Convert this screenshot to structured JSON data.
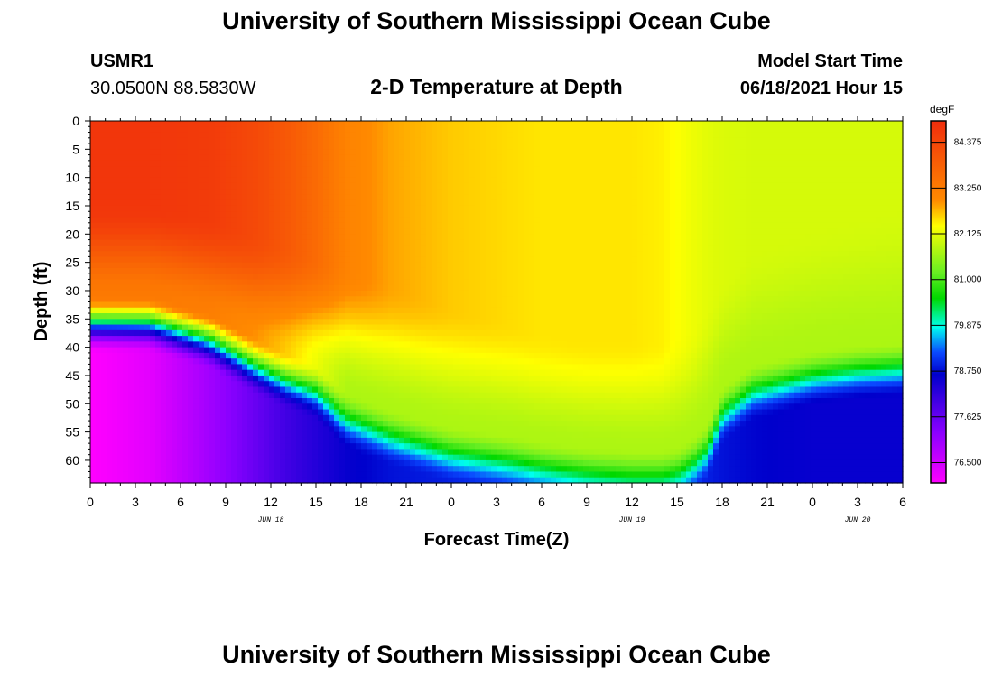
{
  "header": {
    "top_title": "University of Southern Mississippi Ocean Cube",
    "bottom_title": "University of Southern Mississippi Ocean Cube",
    "station_id": "USMR1",
    "station_location": "30.0500N  88.5830W",
    "model_start_label": "Model Start Time",
    "model_start_value": "06/18/2021 Hour 15"
  },
  "chart_data": {
    "type": "heatmap",
    "title": "2-D Temperature at Depth",
    "xlabel": "Forecast Time(Z)",
    "ylabel": "Depth (ft)",
    "x_hours_range": [
      0,
      54
    ],
    "ylim": [
      0,
      64
    ],
    "y_ticks": [
      "0",
      "5",
      "10",
      "15",
      "20",
      "25",
      "30",
      "35",
      "40",
      "45",
      "50",
      "55",
      "60"
    ],
    "y_tick_values": [
      0,
      5,
      10,
      15,
      20,
      25,
      30,
      35,
      40,
      45,
      50,
      55,
      60
    ],
    "x_ticks": [
      "0",
      "3",
      "6",
      "9",
      "12",
      "15",
      "18",
      "21",
      "0",
      "3",
      "6",
      "9",
      "12",
      "15",
      "18",
      "21",
      "0",
      "3",
      "6"
    ],
    "x_tick_hours": [
      0,
      3,
      6,
      9,
      12,
      15,
      18,
      21,
      24,
      27,
      30,
      33,
      36,
      39,
      42,
      45,
      48,
      51,
      54
    ],
    "date_labels": [
      {
        "text": "JUN 18",
        "hour": 12
      },
      {
        "text": "JUN 19",
        "hour": 36
      },
      {
        "text": "JUN 20",
        "hour": 51
      }
    ],
    "colorbar": {
      "unit": "degF",
      "min": 76.0,
      "max": 84.9,
      "ticks": [
        "84.375",
        "83.250",
        "82.125",
        "81.000",
        "79.875",
        "78.750",
        "77.625",
        "76.500"
      ],
      "tick_values": [
        84.375,
        83.25,
        82.125,
        81.0,
        79.875,
        78.75,
        77.625,
        76.5
      ]
    },
    "profile_hours": [
      0,
      4,
      8,
      11,
      13,
      15,
      17,
      20,
      24,
      28,
      30,
      33,
      36,
      38,
      39,
      40,
      41,
      42,
      44,
      48,
      51,
      54
    ],
    "thermocline_depth_ft": [
      33,
      33,
      36,
      40.5,
      43,
      45,
      50,
      53,
      56,
      57.5,
      58.5,
      59.5,
      60,
      60,
      59.5,
      58,
      55.5,
      49,
      45,
      42.5,
      41.5,
      41
    ],
    "surface_temp_degF": [
      84.7,
      84.7,
      84.6,
      84.3,
      84.0,
      83.6,
      83.1,
      82.8,
      82.6,
      82.5,
      82.45,
      82.45,
      82.45,
      82.4,
      82.3,
      82.2,
      82.1,
      82.05,
      82.0,
      82.0,
      82.0,
      82.0
    ],
    "mixed_layer_depth_ft": [
      20,
      20,
      22,
      25,
      27,
      29,
      31,
      34,
      38,
      41,
      43,
      44,
      44,
      44,
      43,
      42,
      38,
      33,
      28,
      24,
      22,
      20
    ],
    "deep_temp_degF": [
      76.0,
      76.3,
      77.0,
      77.6,
      78.0,
      78.3,
      78.6,
      78.8,
      78.9,
      79.0,
      79.0,
      79.1,
      79.2,
      79.2,
      79.1,
      79.0,
      78.9,
      78.8,
      78.7,
      78.6,
      78.6,
      78.6
    ]
  }
}
